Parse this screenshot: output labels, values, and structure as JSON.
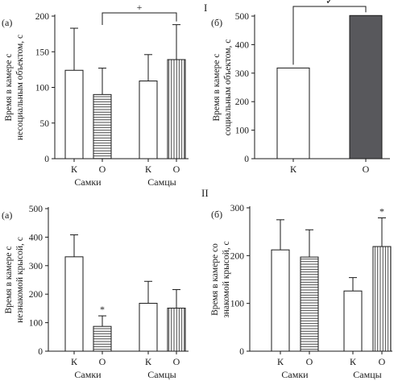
{
  "section_labels": {
    "top": "I",
    "bottom": "II"
  },
  "colors": {
    "ink": "#1a1a1a",
    "bar_white": "#ffffff",
    "bar_dark": "#58585c",
    "hatch": "#1a1a1a"
  },
  "chart_data": [
    {
      "panel": "(a)",
      "type": "bar",
      "ylabel_lines": [
        "Время в камере с",
        "несоциальным объектом, с"
      ],
      "ylim": [
        0,
        200
      ],
      "yticks": [
        0,
        50,
        100,
        150,
        200
      ],
      "categories": [
        "К",
        "О",
        "К",
        "О"
      ],
      "groups": [
        "Самки",
        "Самцы"
      ],
      "values": [
        124,
        90,
        109,
        139
      ],
      "errors": [
        59,
        37,
        37,
        49
      ],
      "fills": [
        "white",
        "horizontal-hatch",
        "white",
        "vertical-hatch"
      ],
      "markers": [
        "",
        "",
        "",
        ""
      ],
      "bracket_label": "+"
    },
    {
      "panel": "(б)",
      "type": "bar",
      "ylabel_lines": [
        "Время в камере с",
        "социальным объектом, с"
      ],
      "ylim": [
        0,
        500
      ],
      "yticks": [
        0,
        100,
        200,
        300,
        400,
        500
      ],
      "categories": [
        "К",
        "О"
      ],
      "groups": [],
      "values": [
        318,
        502
      ],
      "errors": [
        0,
        0
      ],
      "fills": [
        "white",
        "dark"
      ],
      "markers": [
        "",
        ""
      ],
      "bracket_label": "✓"
    },
    {
      "panel": "(a)",
      "type": "bar",
      "ylabel_lines": [
        "Время в камере с",
        "незнакомой крысой, с"
      ],
      "ylim": [
        0,
        500
      ],
      "yticks": [
        0,
        100,
        200,
        300,
        400,
        500
      ],
      "categories": [
        "К",
        "О",
        "К",
        "О"
      ],
      "groups": [
        "Самки",
        "Самцы"
      ],
      "values": [
        331,
        87,
        168,
        151
      ],
      "errors": [
        77,
        37,
        77,
        65
      ],
      "fills": [
        "white",
        "horizontal-hatch",
        "white",
        "vertical-hatch"
      ],
      "markers": [
        "",
        "*",
        "",
        ""
      ],
      "bracket_label": ""
    },
    {
      "panel": "(б)",
      "type": "bar",
      "ylabel_lines": [
        "Время в камере со",
        "знакомой крысой, с"
      ],
      "ylim": [
        0,
        300
      ],
      "yticks": [
        0,
        100,
        200,
        300
      ],
      "categories": [
        "К",
        "О",
        "К",
        "О"
      ],
      "groups": [
        "Самки",
        "Самцы"
      ],
      "values": [
        212,
        197,
        126,
        219
      ],
      "errors": [
        63,
        57,
        28,
        60
      ],
      "fills": [
        "white",
        "horizontal-hatch",
        "white",
        "vertical-hatch"
      ],
      "markers": [
        "",
        "",
        "",
        "*"
      ],
      "bracket_label": ""
    }
  ]
}
